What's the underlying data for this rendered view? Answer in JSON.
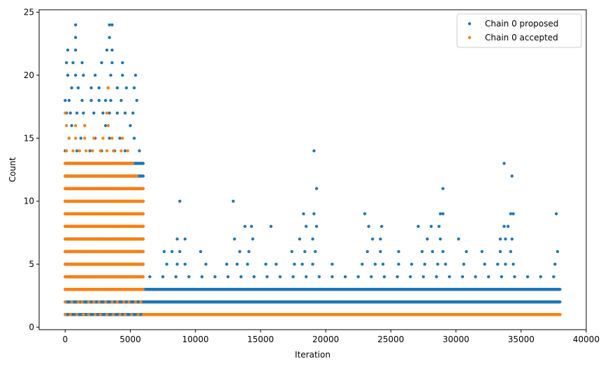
{
  "chart_data": {
    "type": "scatter",
    "title": "",
    "xlabel": "Iteration",
    "ylabel": "Count",
    "xlim": [
      -2000,
      40000
    ],
    "ylim": [
      -0.2,
      25.2
    ],
    "xticks": [
      0,
      5000,
      10000,
      15000,
      20000,
      25000,
      30000,
      35000,
      40000
    ],
    "yticks": [
      0,
      5,
      10,
      15,
      20,
      25
    ],
    "grid": false,
    "legend_position": "upper-right",
    "series": [
      {
        "name": "Chain 0 proposed",
        "color": "#1f77b4",
        "band_ranges": [
          {
            "y": 1,
            "x_from": 0,
            "x_to": 6000
          },
          {
            "y": 2,
            "x_from": 0,
            "x_to": 38000
          },
          {
            "y": 3,
            "x_from": 0,
            "x_to": 38000
          },
          {
            "y": 4,
            "x_from": 0,
            "x_to": 6000
          },
          {
            "y": 5,
            "x_from": 0,
            "x_to": 6000
          },
          {
            "y": 6,
            "x_from": 0,
            "x_to": 6000
          },
          {
            "y": 7,
            "x_from": 0,
            "x_to": 6000
          },
          {
            "y": 8,
            "x_from": 0,
            "x_to": 6000
          },
          {
            "y": 9,
            "x_from": 0,
            "x_to": 6000
          },
          {
            "y": 10,
            "x_from": 0,
            "x_to": 6000
          },
          {
            "y": 11,
            "x_from": 0,
            "x_to": 6000
          },
          {
            "y": 12,
            "x_from": 0,
            "x_to": 6000
          },
          {
            "y": 13,
            "x_from": 0,
            "x_to": 6000
          }
        ],
        "points": [
          {
            "x": 0,
            "y": 14
          },
          {
            "x": 300,
            "y": 15
          },
          {
            "x": 500,
            "y": 16
          },
          {
            "x": 900,
            "y": 14
          },
          {
            "x": 1200,
            "y": 15
          },
          {
            "x": 1500,
            "y": 16
          },
          {
            "x": 1900,
            "y": 14
          },
          {
            "x": 2300,
            "y": 15
          },
          {
            "x": 2800,
            "y": 14
          },
          {
            "x": 3100,
            "y": 16
          },
          {
            "x": 3400,
            "y": 15
          },
          {
            "x": 3800,
            "y": 14
          },
          {
            "x": 4200,
            "y": 15
          },
          {
            "x": 4600,
            "y": 14
          },
          {
            "x": 5000,
            "y": 16
          },
          {
            "x": 5300,
            "y": 15
          },
          {
            "x": 5700,
            "y": 14
          },
          {
            "x": 100,
            "y": 17
          },
          {
            "x": 400,
            "y": 17
          },
          {
            "x": 900,
            "y": 17
          },
          {
            "x": 1400,
            "y": 17
          },
          {
            "x": 2200,
            "y": 17
          },
          {
            "x": 2900,
            "y": 17
          },
          {
            "x": 3400,
            "y": 17
          },
          {
            "x": 4000,
            "y": 17
          },
          {
            "x": 4600,
            "y": 17
          },
          {
            "x": 5200,
            "y": 17
          },
          {
            "x": 0,
            "y": 18
          },
          {
            "x": 300,
            "y": 18
          },
          {
            "x": 1300,
            "y": 18
          },
          {
            "x": 2000,
            "y": 18
          },
          {
            "x": 2600,
            "y": 18
          },
          {
            "x": 3100,
            "y": 18
          },
          {
            "x": 3500,
            "y": 18
          },
          {
            "x": 4300,
            "y": 18
          },
          {
            "x": 5500,
            "y": 18
          },
          {
            "x": 200,
            "y": 20
          },
          {
            "x": 800,
            "y": 20
          },
          {
            "x": 1400,
            "y": 20
          },
          {
            "x": 2300,
            "y": 20
          },
          {
            "x": 3500,
            "y": 20
          },
          {
            "x": 4400,
            "y": 20
          },
          {
            "x": 5400,
            "y": 20
          },
          {
            "x": 500,
            "y": 19
          },
          {
            "x": 1000,
            "y": 19
          },
          {
            "x": 2000,
            "y": 19
          },
          {
            "x": 2600,
            "y": 19
          },
          {
            "x": 3300,
            "y": 19
          },
          {
            "x": 4000,
            "y": 19
          },
          {
            "x": 4700,
            "y": 19
          },
          {
            "x": 5300,
            "y": 19
          },
          {
            "x": 100,
            "y": 21
          },
          {
            "x": 600,
            "y": 21
          },
          {
            "x": 1300,
            "y": 21
          },
          {
            "x": 2800,
            "y": 21
          },
          {
            "x": 3600,
            "y": 21
          },
          {
            "x": 4400,
            "y": 21
          },
          {
            "x": 200,
            "y": 22
          },
          {
            "x": 800,
            "y": 22
          },
          {
            "x": 3200,
            "y": 22
          },
          {
            "x": 3600,
            "y": 22
          },
          {
            "x": 800,
            "y": 23
          },
          {
            "x": 3400,
            "y": 23
          },
          {
            "x": 800,
            "y": 24
          },
          {
            "x": 3400,
            "y": 24
          },
          {
            "x": 3600,
            "y": 24
          },
          {
            "x": 6500,
            "y": 4
          },
          {
            "x": 7500,
            "y": 4
          },
          {
            "x": 8500,
            "y": 4
          },
          {
            "x": 9500,
            "y": 4
          },
          {
            "x": 10500,
            "y": 4
          },
          {
            "x": 11500,
            "y": 4
          },
          {
            "x": 12500,
            "y": 4
          },
          {
            "x": 13500,
            "y": 4
          },
          {
            "x": 14500,
            "y": 4
          },
          {
            "x": 15500,
            "y": 4
          },
          {
            "x": 16500,
            "y": 4
          },
          {
            "x": 17500,
            "y": 4
          },
          {
            "x": 18500,
            "y": 4
          },
          {
            "x": 19500,
            "y": 4
          },
          {
            "x": 20500,
            "y": 4
          },
          {
            "x": 21500,
            "y": 4
          },
          {
            "x": 22500,
            "y": 4
          },
          {
            "x": 23500,
            "y": 4
          },
          {
            "x": 24500,
            "y": 4
          },
          {
            "x": 25500,
            "y": 4
          },
          {
            "x": 26500,
            "y": 4
          },
          {
            "x": 27500,
            "y": 4
          },
          {
            "x": 28500,
            "y": 4
          },
          {
            "x": 29500,
            "y": 4
          },
          {
            "x": 30500,
            "y": 4
          },
          {
            "x": 31500,
            "y": 4
          },
          {
            "x": 32500,
            "y": 4
          },
          {
            "x": 33500,
            "y": 4
          },
          {
            "x": 34500,
            "y": 4
          },
          {
            "x": 35500,
            "y": 4
          },
          {
            "x": 36500,
            "y": 4
          },
          {
            "x": 37500,
            "y": 4
          },
          {
            "x": 7800,
            "y": 5
          },
          {
            "x": 8600,
            "y": 5
          },
          {
            "x": 9200,
            "y": 5
          },
          {
            "x": 10800,
            "y": 5
          },
          {
            "x": 12400,
            "y": 5
          },
          {
            "x": 13200,
            "y": 5
          },
          {
            "x": 14000,
            "y": 5
          },
          {
            "x": 15400,
            "y": 5
          },
          {
            "x": 16200,
            "y": 5
          },
          {
            "x": 17600,
            "y": 5
          },
          {
            "x": 18200,
            "y": 5
          },
          {
            "x": 19000,
            "y": 5
          },
          {
            "x": 20500,
            "y": 5
          },
          {
            "x": 22800,
            "y": 5
          },
          {
            "x": 23800,
            "y": 5
          },
          {
            "x": 24400,
            "y": 5
          },
          {
            "x": 25600,
            "y": 5
          },
          {
            "x": 26600,
            "y": 5
          },
          {
            "x": 27600,
            "y": 5
          },
          {
            "x": 28600,
            "y": 5
          },
          {
            "x": 29200,
            "y": 5
          },
          {
            "x": 30600,
            "y": 5
          },
          {
            "x": 32200,
            "y": 5
          },
          {
            "x": 33200,
            "y": 5
          },
          {
            "x": 33800,
            "y": 5
          },
          {
            "x": 34400,
            "y": 5
          },
          {
            "x": 37600,
            "y": 5
          },
          {
            "x": 7600,
            "y": 6
          },
          {
            "x": 8200,
            "y": 6
          },
          {
            "x": 8800,
            "y": 6
          },
          {
            "x": 10400,
            "y": 6
          },
          {
            "x": 13400,
            "y": 6
          },
          {
            "x": 14100,
            "y": 6
          },
          {
            "x": 17400,
            "y": 6
          },
          {
            "x": 18400,
            "y": 6
          },
          {
            "x": 19200,
            "y": 6
          },
          {
            "x": 23200,
            "y": 6
          },
          {
            "x": 24200,
            "y": 6
          },
          {
            "x": 25600,
            "y": 6
          },
          {
            "x": 27400,
            "y": 6
          },
          {
            "x": 28200,
            "y": 6
          },
          {
            "x": 29000,
            "y": 6
          },
          {
            "x": 30800,
            "y": 6
          },
          {
            "x": 32000,
            "y": 6
          },
          {
            "x": 33400,
            "y": 6
          },
          {
            "x": 34200,
            "y": 6
          },
          {
            "x": 37800,
            "y": 6
          },
          {
            "x": 8600,
            "y": 7
          },
          {
            "x": 9200,
            "y": 7
          },
          {
            "x": 13000,
            "y": 7
          },
          {
            "x": 14400,
            "y": 7
          },
          {
            "x": 18000,
            "y": 7
          },
          {
            "x": 19000,
            "y": 7
          },
          {
            "x": 23600,
            "y": 7
          },
          {
            "x": 24200,
            "y": 7
          },
          {
            "x": 27800,
            "y": 7
          },
          {
            "x": 28800,
            "y": 7
          },
          {
            "x": 30200,
            "y": 7
          },
          {
            "x": 33400,
            "y": 7
          },
          {
            "x": 33800,
            "y": 7
          },
          {
            "x": 34300,
            "y": 7
          },
          {
            "x": 13800,
            "y": 8
          },
          {
            "x": 14300,
            "y": 8
          },
          {
            "x": 15800,
            "y": 8
          },
          {
            "x": 18500,
            "y": 8
          },
          {
            "x": 19300,
            "y": 8
          },
          {
            "x": 23300,
            "y": 8
          },
          {
            "x": 24300,
            "y": 8
          },
          {
            "x": 27100,
            "y": 8
          },
          {
            "x": 28100,
            "y": 8
          },
          {
            "x": 28700,
            "y": 8
          },
          {
            "x": 33700,
            "y": 8
          },
          {
            "x": 34000,
            "y": 8
          },
          {
            "x": 18300,
            "y": 9
          },
          {
            "x": 19100,
            "y": 9
          },
          {
            "x": 23000,
            "y": 9
          },
          {
            "x": 28800,
            "y": 9
          },
          {
            "x": 29000,
            "y": 9
          },
          {
            "x": 34200,
            "y": 9
          },
          {
            "x": 34400,
            "y": 9
          },
          {
            "x": 37700,
            "y": 9
          },
          {
            "x": 8800,
            "y": 10
          },
          {
            "x": 12900,
            "y": 10
          },
          {
            "x": 19300,
            "y": 11
          },
          {
            "x": 29000,
            "y": 11
          },
          {
            "x": 34300,
            "y": 12
          },
          {
            "x": 33700,
            "y": 13
          },
          {
            "x": 19100,
            "y": 14
          }
        ]
      },
      {
        "name": "Chain 0 accepted",
        "color": "#ff7f0e",
        "band_ranges": [
          {
            "y": 1,
            "x_from": 6000,
            "x_to": 38000
          },
          {
            "y": 3,
            "x_from": 0,
            "x_to": 6000
          },
          {
            "y": 4,
            "x_from": 0,
            "x_to": 6000
          },
          {
            "y": 5,
            "x_from": 0,
            "x_to": 6000
          },
          {
            "y": 6,
            "x_from": 0,
            "x_to": 6000
          },
          {
            "y": 7,
            "x_from": 0,
            "x_to": 6000
          },
          {
            "y": 8,
            "x_from": 0,
            "x_to": 6000
          },
          {
            "y": 9,
            "x_from": 0,
            "x_to": 6000
          },
          {
            "y": 10,
            "x_from": 0,
            "x_to": 6000
          },
          {
            "y": 11,
            "x_from": 0,
            "x_to": 6000
          },
          {
            "y": 12,
            "x_from": 0,
            "x_to": 5500
          },
          {
            "y": 13,
            "x_from": 0,
            "x_to": 5200
          }
        ],
        "points": [
          {
            "x": 0,
            "y": 1
          },
          {
            "x": 400,
            "y": 1
          },
          {
            "x": 900,
            "y": 1
          },
          {
            "x": 1400,
            "y": 1
          },
          {
            "x": 1800,
            "y": 1
          },
          {
            "x": 2300,
            "y": 1
          },
          {
            "x": 2700,
            "y": 1
          },
          {
            "x": 3200,
            "y": 1
          },
          {
            "x": 3700,
            "y": 1
          },
          {
            "x": 4200,
            "y": 1
          },
          {
            "x": 4600,
            "y": 1
          },
          {
            "x": 5100,
            "y": 1
          },
          {
            "x": 5600,
            "y": 1
          },
          {
            "x": 0,
            "y": 2
          },
          {
            "x": 500,
            "y": 2
          },
          {
            "x": 1000,
            "y": 2
          },
          {
            "x": 1300,
            "y": 2
          },
          {
            "x": 1800,
            "y": 2
          },
          {
            "x": 2200,
            "y": 2
          },
          {
            "x": 2600,
            "y": 2
          },
          {
            "x": 3100,
            "y": 2
          },
          {
            "x": 3600,
            "y": 2
          },
          {
            "x": 4000,
            "y": 2
          },
          {
            "x": 4500,
            "y": 2
          },
          {
            "x": 4900,
            "y": 2
          },
          {
            "x": 5400,
            "y": 2
          },
          {
            "x": 5800,
            "y": 2
          },
          {
            "x": 100,
            "y": 14
          },
          {
            "x": 600,
            "y": 14
          },
          {
            "x": 1100,
            "y": 14
          },
          {
            "x": 1600,
            "y": 14
          },
          {
            "x": 2100,
            "y": 14
          },
          {
            "x": 2700,
            "y": 14
          },
          {
            "x": 3200,
            "y": 14
          },
          {
            "x": 3700,
            "y": 14
          },
          {
            "x": 4300,
            "y": 14
          },
          {
            "x": 4800,
            "y": 14
          },
          {
            "x": 300,
            "y": 15
          },
          {
            "x": 800,
            "y": 15
          },
          {
            "x": 1500,
            "y": 15
          },
          {
            "x": 2200,
            "y": 15
          },
          {
            "x": 2900,
            "y": 15
          },
          {
            "x": 3600,
            "y": 15
          },
          {
            "x": 4400,
            "y": 15
          },
          {
            "x": 100,
            "y": 16
          },
          {
            "x": 800,
            "y": 16
          },
          {
            "x": 1500,
            "y": 16
          },
          {
            "x": 3300,
            "y": 16
          },
          {
            "x": 0,
            "y": 17
          },
          {
            "x": 3200,
            "y": 17
          },
          {
            "x": 3300,
            "y": 19
          }
        ]
      }
    ]
  }
}
